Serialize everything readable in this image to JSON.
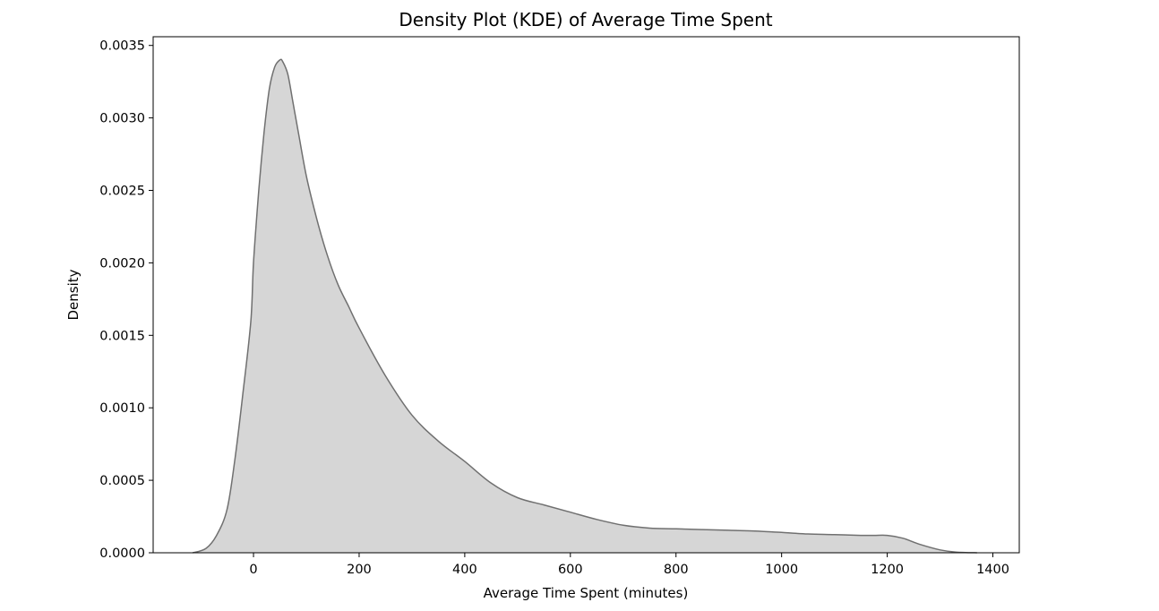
{
  "chart_data": {
    "type": "area",
    "title": "Density Plot (KDE) of Average Time Spent",
    "xlabel": "Average Time Spent (minutes)",
    "ylabel": "Density",
    "xlim": [
      -190,
      1450
    ],
    "ylim": [
      0,
      0.00356
    ],
    "xticks": [
      0,
      200,
      400,
      600,
      800,
      1000,
      1200,
      1400
    ],
    "xtick_labels": [
      "0",
      "200",
      "400",
      "600",
      "800",
      "1000",
      "1200",
      "1400"
    ],
    "yticks": [
      0,
      0.0005,
      0.001,
      0.0015,
      0.002,
      0.0025,
      0.003,
      0.0035
    ],
    "ytick_labels": [
      "0.0000",
      "0.0005",
      "0.0010",
      "0.0015",
      "0.0020",
      "0.0025",
      "0.0030",
      "0.0035"
    ],
    "grid": false,
    "fill_color": "#d6d6d6",
    "line_color": "#707070",
    "series": [
      {
        "x": [
          -115,
          -90,
          -70,
          -50,
          -35,
          -20,
          -5,
          0,
          10,
          20,
          30,
          40,
          50,
          55,
          65,
          75,
          85,
          100,
          120,
          140,
          160,
          180,
          200,
          250,
          300,
          350,
          400,
          450,
          500,
          550,
          600,
          650,
          700,
          750,
          800,
          850,
          900,
          950,
          1000,
          1050,
          1100,
          1150,
          1175,
          1200,
          1230,
          1260,
          1300,
          1330,
          1370
        ],
        "y": [
          0,
          3e-05,
          0.00012,
          0.0003,
          0.00065,
          0.0011,
          0.0016,
          0.002,
          0.0025,
          0.0029,
          0.0032,
          0.00335,
          0.0034,
          0.00339,
          0.0033,
          0.0031,
          0.0029,
          0.0026,
          0.0023,
          0.00205,
          0.00185,
          0.0017,
          0.00155,
          0.00122,
          0.00095,
          0.00077,
          0.00063,
          0.00048,
          0.00038,
          0.00033,
          0.00028,
          0.00023,
          0.00019,
          0.00017,
          0.000165,
          0.00016,
          0.000155,
          0.00015,
          0.00014,
          0.00013,
          0.000125,
          0.00012,
          0.00012,
          0.00012,
          0.0001,
          6e-05,
          2e-05,
          5e-06,
          0
        ]
      }
    ]
  }
}
